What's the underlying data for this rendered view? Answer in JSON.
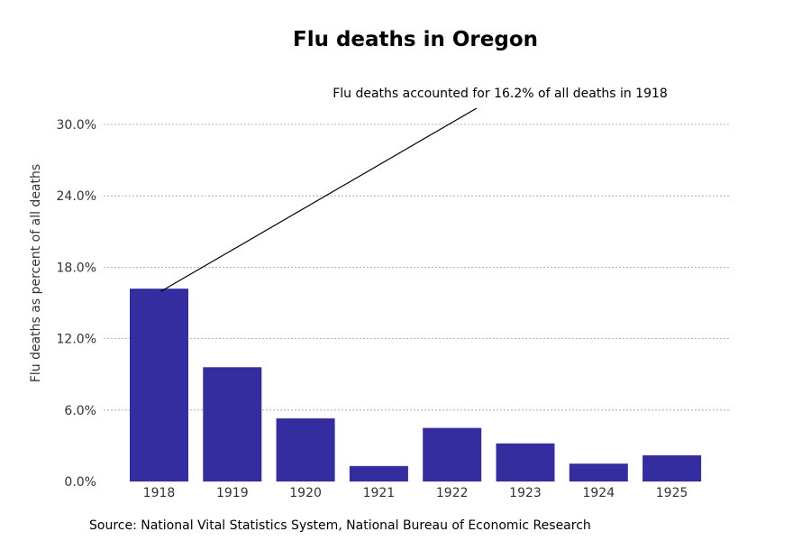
{
  "colors": {
    "bar": "#332d9f",
    "grid": "#9a9a9a"
  },
  "chart_data": {
    "type": "bar",
    "title": "Flu deaths in Oregon",
    "ylabel": "Flu deaths as percent of all deaths",
    "xlabel": "",
    "categories": [
      "1918",
      "1919",
      "1920",
      "1921",
      "1922",
      "1923",
      "1924",
      "1925"
    ],
    "values": [
      16.2,
      9.6,
      5.3,
      1.3,
      4.5,
      3.2,
      1.5,
      2.2
    ],
    "ylim": [
      0,
      30
    ],
    "yticks": [
      0,
      6,
      12,
      18,
      24,
      30
    ],
    "ytick_labels": [
      "0.0%",
      "6.0%",
      "12.0%",
      "18.0%",
      "24.0%",
      "30.0%"
    ],
    "grid": true,
    "annotation": {
      "text": "Flu deaths accounted for 16.2% of all deaths in 1918",
      "target_category": "1918",
      "target_value": 16.2
    },
    "source": "Source: National Vital Statistics System, National Bureau of Economic Research"
  }
}
